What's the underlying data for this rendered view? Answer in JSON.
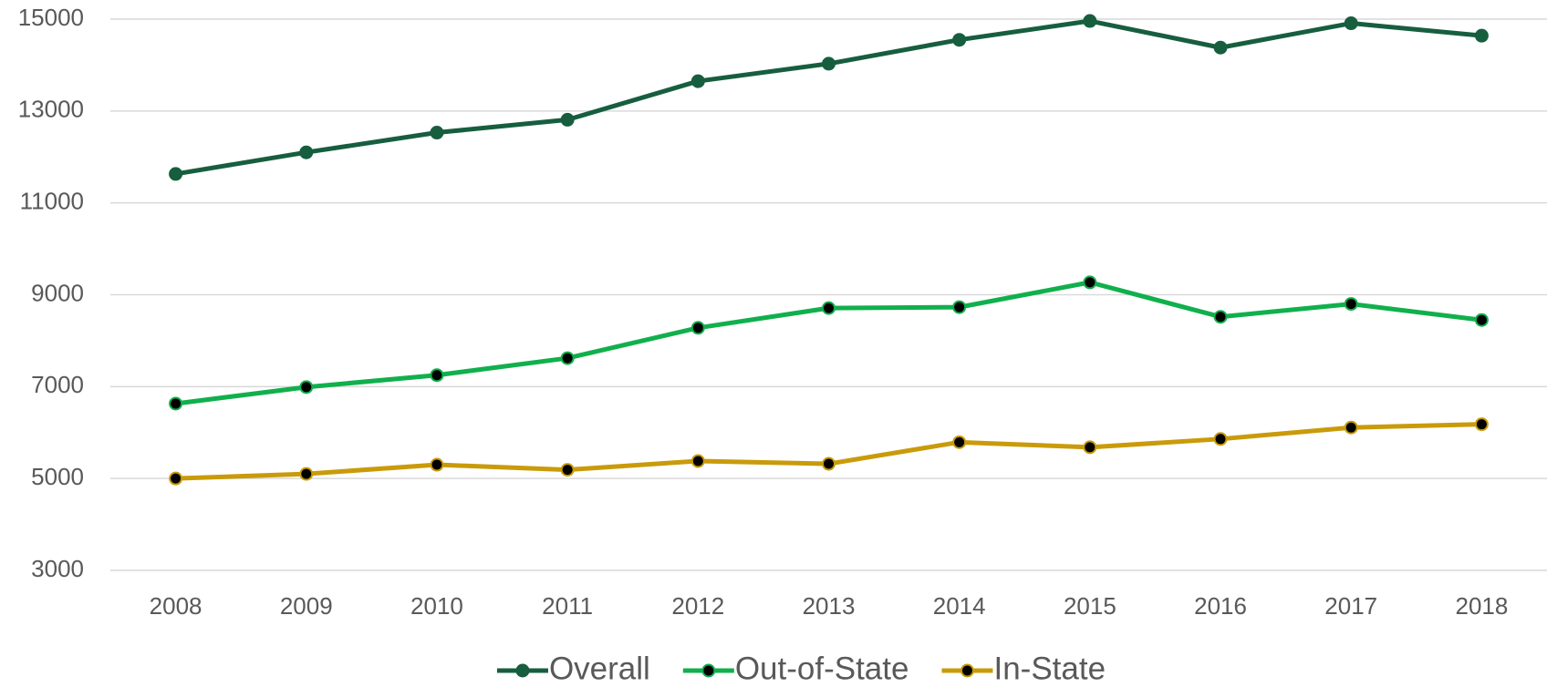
{
  "chart_data": {
    "type": "line",
    "categories": [
      "2008",
      "2009",
      "2010",
      "2011",
      "2012",
      "2013",
      "2014",
      "2015",
      "2016",
      "2017",
      "2018"
    ],
    "series": [
      {
        "name": "Overall",
        "color": "#175e3f",
        "marker_color": "#175e3f",
        "values": [
          11630,
          12100,
          12530,
          12810,
          13650,
          14030,
          14550,
          14960,
          14380,
          14910,
          14640
        ]
      },
      {
        "name": "Out-of-State",
        "color": "#10b04c",
        "marker_color": "#000000",
        "values": [
          6630,
          6990,
          7250,
          7620,
          8280,
          8710,
          8730,
          9270,
          8520,
          8800,
          8450
        ]
      },
      {
        "name": "In-State",
        "color": "#c99b0a",
        "marker_color": "#000000",
        "values": [
          5000,
          5100,
          5300,
          5190,
          5380,
          5320,
          5790,
          5680,
          5860,
          6110,
          6180
        ]
      }
    ],
    "ylim": [
      3000,
      15000
    ],
    "yticks": [
      3000,
      5000,
      7000,
      9000,
      11000,
      13000,
      15000
    ],
    "grid": true,
    "legend": "bottom"
  }
}
